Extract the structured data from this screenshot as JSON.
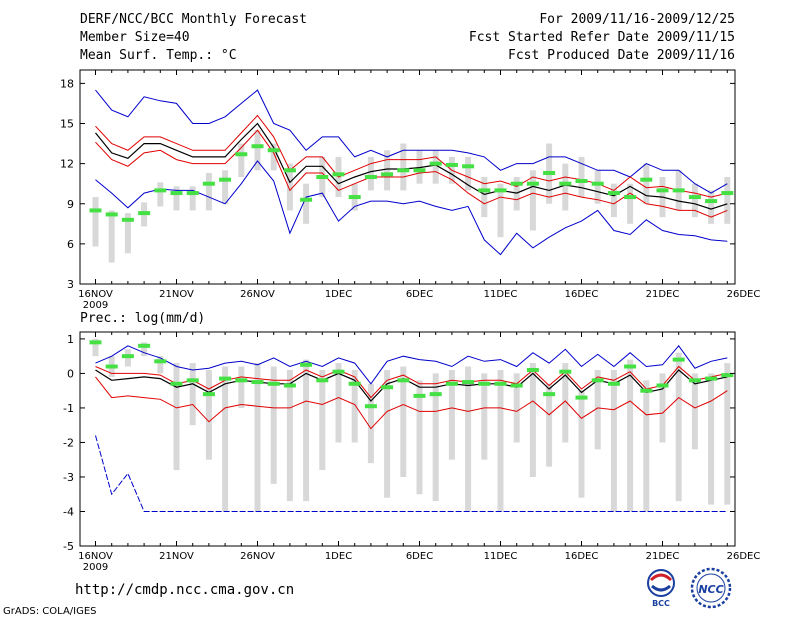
{
  "header": {
    "title": "DERF/NCC/BCC Monthly Forecast",
    "member_size": "Member Size=40",
    "variable": "Mean Surf. Temp.: °C",
    "period": "For 2009/11/16-2009/12/25",
    "started": "Fcst Started Refer Date 2009/11/15",
    "produced": "Fcst Produced Date 2009/11/16"
  },
  "x_ticks": [
    "16NOV",
    "21NOV",
    "26NOV",
    "1DEC",
    "6DEC",
    "11DEC",
    "16DEC",
    "21DEC",
    "26DEC"
  ],
  "x_year": "2009",
  "footer": {
    "url": "http://cmdp.ncc.cma.gov.cn",
    "grads": "GrADS: COLA/IGES",
    "logo1_text": "BCC",
    "logo2_text": "NCC"
  },
  "colors": {
    "mean": "#000000",
    "spread": "#e00000",
    "range": "#0000cc",
    "obs_bar": "#d8d8d8",
    "obs_marker": "#44e044"
  },
  "chart_data": [
    {
      "type": "line",
      "title": "Mean Surf. Temp.: °C",
      "x": [
        "11/16",
        "11/17",
        "11/18",
        "11/19",
        "11/20",
        "11/21",
        "11/22",
        "11/23",
        "11/24",
        "11/25",
        "11/26",
        "11/27",
        "11/28",
        "11/29",
        "11/30",
        "12/1",
        "12/2",
        "12/3",
        "12/4",
        "12/5",
        "12/6",
        "12/7",
        "12/8",
        "12/9",
        "12/10",
        "12/11",
        "12/12",
        "12/13",
        "12/14",
        "12/15",
        "12/16",
        "12/17",
        "12/18",
        "12/19",
        "12/20",
        "12/21",
        "12/22",
        "12/23",
        "12/24",
        "12/25"
      ],
      "ylim": [
        3,
        19
      ],
      "yticks": [
        3,
        6,
        9,
        12,
        15,
        18
      ],
      "series": [
        {
          "name": "max",
          "values": [
            17.5,
            16,
            15.5,
            17,
            16.7,
            16.5,
            15,
            15,
            15.5,
            16.5,
            17.5,
            15,
            14.5,
            13,
            14,
            14,
            12.5,
            13,
            12.5,
            13,
            13,
            13,
            13,
            12.8,
            12.5,
            11.5,
            12,
            12,
            12.5,
            12.5,
            12,
            11.5,
            11.5,
            11,
            12,
            11.5,
            11.5,
            10.5,
            9.8,
            10.5
          ]
        },
        {
          "name": "upper",
          "values": [
            14.8,
            13.5,
            13,
            14,
            14,
            13.5,
            13,
            13,
            13,
            14.3,
            15.6,
            14,
            11.5,
            12.5,
            12.5,
            11,
            11.5,
            12,
            12.3,
            12.3,
            12.3,
            12.5,
            11.5,
            11,
            10.5,
            10.7,
            10.3,
            11,
            10.7,
            11,
            10.8,
            10.5,
            10,
            11,
            10.2,
            10.3,
            10,
            9.8,
            9.5,
            9.8
          ]
        },
        {
          "name": "mean",
          "values": [
            14.3,
            12.8,
            12.4,
            13.5,
            13.5,
            13,
            12.5,
            12.5,
            12.5,
            13.8,
            15,
            13.2,
            10.6,
            11.8,
            11.8,
            10.5,
            11,
            11.4,
            11.6,
            11.6,
            11.7,
            11.9,
            11.2,
            10.4,
            9.7,
            10,
            9.8,
            10.3,
            10,
            10.4,
            10.2,
            9.9,
            9.6,
            10.3,
            9.6,
            9.5,
            9.2,
            9,
            8.6,
            9
          ]
        },
        {
          "name": "lower",
          "values": [
            13.6,
            12.3,
            11.8,
            12.8,
            13,
            12.3,
            12,
            12,
            12,
            13.2,
            14.5,
            12.8,
            10,
            11.3,
            11.3,
            10,
            10.5,
            11,
            11,
            11,
            11.3,
            11.4,
            10.8,
            9.8,
            9,
            9.5,
            9.3,
            9.8,
            9.5,
            9.8,
            9.5,
            9.3,
            9,
            9.8,
            9,
            8.8,
            8.5,
            8.5,
            8,
            8.5
          ]
        },
        {
          "name": "min",
          "values": [
            10.8,
            9.8,
            8.7,
            9.8,
            10.1,
            10,
            10,
            9.5,
            9,
            10.5,
            12.2,
            10.7,
            6.8,
            9.5,
            9.8,
            7.7,
            8.8,
            9.2,
            9.2,
            9,
            9.2,
            8.8,
            8.5,
            8.8,
            6.3,
            5.2,
            6.8,
            5.7,
            6.5,
            7.2,
            7.7,
            8.5,
            7,
            6.7,
            7.8,
            7,
            6.7,
            6.6,
            6.3,
            6.2
          ]
        }
      ],
      "observed": [
        8.5,
        8.2,
        7.8,
        8.3,
        10,
        9.8,
        9.8,
        10.5,
        10.8,
        12.7,
        13.3,
        13,
        11.5,
        9.3,
        11,
        11.2,
        9.5,
        11,
        11.2,
        11.5,
        11.5,
        12,
        11.9,
        11.8,
        10,
        10,
        10.5,
        10.5,
        11.3,
        10.5,
        10.7,
        10.5,
        9.8,
        9.5,
        10.8,
        10,
        10,
        9.5,
        9.2,
        9.8
      ],
      "observed_range": [
        [
          5.8,
          9.5
        ],
        [
          4.6,
          8.5
        ],
        [
          5.3,
          8.3
        ],
        [
          7.3,
          9.1
        ],
        [
          8.8,
          10.6
        ],
        [
          8.5,
          10.3
        ],
        [
          8.5,
          10.3
        ],
        [
          8.5,
          11.3
        ],
        [
          9,
          11.5
        ],
        [
          11,
          13.5
        ],
        [
          11.5,
          14.5
        ],
        [
          11.5,
          13.5
        ],
        [
          8.5,
          12
        ],
        [
          7.5,
          10.5
        ],
        [
          9.5,
          12.5
        ],
        [
          9.5,
          12.5
        ],
        [
          8.5,
          10.5
        ],
        [
          10,
          12.5
        ],
        [
          10,
          13
        ],
        [
          10,
          13.5
        ],
        [
          10.5,
          13
        ],
        [
          10.5,
          13
        ],
        [
          10.5,
          12.5
        ],
        [
          10,
          12.5
        ],
        [
          8,
          11
        ],
        [
          6.5,
          10.5
        ],
        [
          8.5,
          11
        ],
        [
          7,
          11.5
        ],
        [
          9,
          13.5
        ],
        [
          8.5,
          12
        ],
        [
          9.5,
          12.5
        ],
        [
          9,
          11.5
        ],
        [
          8,
          10.5
        ],
        [
          7.5,
          10.5
        ],
        [
          9,
          12
        ],
        [
          8,
          11
        ],
        [
          8.5,
          11.5
        ],
        [
          8,
          10.5
        ],
        [
          7.5,
          10
        ],
        [
          7.5,
          11
        ]
      ]
    },
    {
      "type": "line",
      "title": "Prec.: log(mm/d)",
      "x": [
        "11/16",
        "11/17",
        "11/18",
        "11/19",
        "11/20",
        "11/21",
        "11/22",
        "11/23",
        "11/24",
        "11/25",
        "11/26",
        "11/27",
        "11/28",
        "11/29",
        "11/30",
        "12/1",
        "12/2",
        "12/3",
        "12/4",
        "12/5",
        "12/6",
        "12/7",
        "12/8",
        "12/9",
        "12/10",
        "12/11",
        "12/12",
        "12/13",
        "12/14",
        "12/15",
        "12/16",
        "12/17",
        "12/18",
        "12/19",
        "12/20",
        "12/21",
        "12/22",
        "12/23",
        "12/24",
        "12/25"
      ],
      "ylim": [
        -5,
        1.2
      ],
      "yticks": [
        -5,
        -4,
        -3,
        -2,
        -1,
        0,
        1
      ],
      "series": [
        {
          "name": "max",
          "values": [
            0.3,
            0.5,
            0.8,
            0.6,
            0.45,
            0.2,
            0.1,
            0.15,
            0.3,
            0.35,
            0.25,
            0.45,
            0.2,
            0.35,
            0.2,
            0.45,
            0.3,
            -0.3,
            0.35,
            0.5,
            0.4,
            0.35,
            0.2,
            0.5,
            0.35,
            0.4,
            0.2,
            0.6,
            0.3,
            0.7,
            0.2,
            0.55,
            0.2,
            0.6,
            0.2,
            0.25,
            0.8,
            0.15,
            0.35,
            0.45
          ]
        },
        {
          "name": "upper",
          "values": [
            0.2,
            0,
            0,
            0,
            -0.05,
            -0.3,
            -0.2,
            -0.45,
            -0.2,
            -0.1,
            -0.15,
            -0.2,
            -0.2,
            0.1,
            -0.1,
            0.1,
            -0.1,
            -0.7,
            -0.2,
            -0.05,
            -0.3,
            -0.3,
            -0.2,
            -0.25,
            -0.2,
            -0.2,
            -0.3,
            0.1,
            -0.35,
            0.05,
            -0.45,
            -0.1,
            -0.2,
            0.05,
            -0.45,
            -0.35,
            0.2,
            -0.2,
            -0.1,
            0
          ]
        },
        {
          "name": "mean",
          "values": [
            0.1,
            -0.2,
            -0.15,
            -0.1,
            -0.15,
            -0.4,
            -0.3,
            -0.55,
            -0.3,
            -0.2,
            -0.25,
            -0.3,
            -0.3,
            0,
            -0.2,
            0,
            -0.2,
            -0.8,
            -0.3,
            -0.15,
            -0.4,
            -0.4,
            -0.3,
            -0.35,
            -0.3,
            -0.3,
            -0.4,
            0,
            -0.45,
            -0.05,
            -0.55,
            -0.2,
            -0.3,
            -0.05,
            -0.55,
            -0.45,
            0.1,
            -0.3,
            -0.2,
            -0.1
          ]
        },
        {
          "name": "lower",
          "values": [
            -0.1,
            -0.7,
            -0.65,
            -0.7,
            -0.75,
            -1,
            -0.9,
            -1.4,
            -1,
            -0.9,
            -0.95,
            -1,
            -1,
            -0.8,
            -0.9,
            -0.7,
            -0.9,
            -1.6,
            -1.1,
            -0.9,
            -1.1,
            -1.1,
            -1,
            -1.1,
            -1,
            -1,
            -1.1,
            -0.8,
            -1.2,
            -0.8,
            -1.3,
            -1,
            -1.05,
            -0.8,
            -1.2,
            -1.15,
            -0.7,
            -1,
            -0.8,
            -0.5
          ]
        },
        {
          "name": "min",
          "values": [
            -1.8,
            -3.5,
            -2.9,
            -4,
            -4,
            -4,
            -4,
            -4,
            -4,
            -4,
            -4,
            -4,
            -4,
            -4,
            -4,
            -4,
            -4,
            -4,
            -4,
            -4,
            -4,
            -4,
            -4,
            -4,
            -4,
            -4,
            -4,
            -4,
            -4,
            -4,
            -4,
            -4,
            -4,
            -4,
            -4,
            -4,
            -4,
            -4,
            -4,
            -4
          ]
        }
      ],
      "observed": [
        0.9,
        0.2,
        0.5,
        0.8,
        0.35,
        -0.3,
        -0.2,
        -0.6,
        -0.15,
        -0.2,
        -0.25,
        -0.3,
        -0.35,
        0.25,
        -0.2,
        0.05,
        -0.3,
        -0.95,
        -0.4,
        -0.2,
        -0.65,
        -0.6,
        -0.3,
        -0.25,
        -0.3,
        -0.3,
        -0.35,
        0.1,
        -0.6,
        0.05,
        -0.7,
        -0.2,
        -0.3,
        0.2,
        -0.5,
        -0.35,
        0.4,
        -0.2,
        -0.15,
        -0.05
      ],
      "observed_range": [
        [
          0.5,
          1
        ],
        [
          -0.1,
          0.5
        ],
        [
          0.2,
          0.7
        ],
        [
          0.5,
          0.9
        ],
        [
          0,
          0.5
        ],
        [
          -2.8,
          0.3
        ],
        [
          -1.5,
          0.3
        ],
        [
          -2.5,
          0.1
        ],
        [
          -4,
          0.2
        ],
        [
          -1,
          0.2
        ],
        [
          -4,
          0.3
        ],
        [
          -3.2,
          0.2
        ],
        [
          -3.7,
          0.1
        ],
        [
          -3.7,
          0.4
        ],
        [
          -2.8,
          0.1
        ],
        [
          -2,
          0.3
        ],
        [
          -2,
          0.1
        ],
        [
          -2.6,
          -0.3
        ],
        [
          -3.6,
          0.1
        ],
        [
          -3,
          0.2
        ],
        [
          -3.5,
          -0.2
        ],
        [
          -3.7,
          0
        ],
        [
          -2.5,
          0.1
        ],
        [
          -4,
          0.2
        ],
        [
          -2.5,
          0
        ],
        [
          -4,
          0.1
        ],
        [
          -2,
          0
        ],
        [
          -3,
          0.3
        ],
        [
          -2.7,
          -0.3
        ],
        [
          -2,
          0.3
        ],
        [
          -3.6,
          -0.5
        ],
        [
          -2.2,
          0.1
        ],
        [
          -4,
          0.1
        ],
        [
          -4,
          0.4
        ],
        [
          -4,
          -0.2
        ],
        [
          -2,
          0
        ],
        [
          -3.7,
          0.6
        ],
        [
          -2.2,
          0
        ],
        [
          -3.8,
          0
        ],
        [
          -3.8,
          0.3
        ]
      ]
    }
  ]
}
